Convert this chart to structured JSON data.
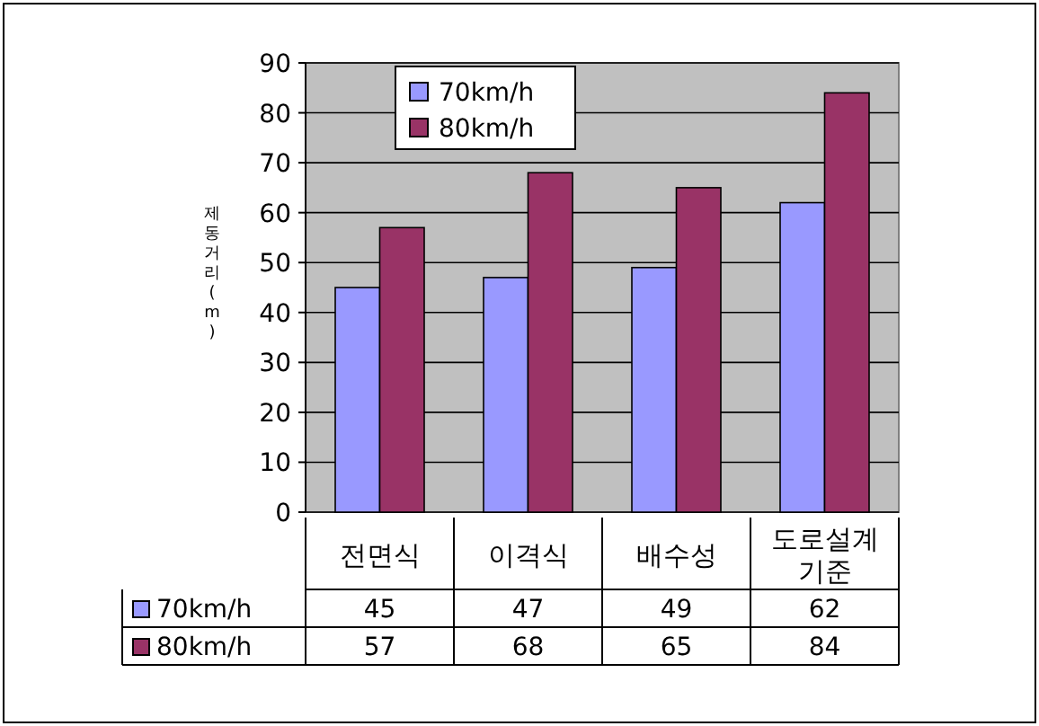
{
  "chart_data": {
    "type": "bar",
    "categories": [
      "전면식",
      "이격식",
      "배수성",
      "도로설계 기준"
    ],
    "series": [
      {
        "name": "70km/h",
        "color": "#9999ff",
        "values": [
          45,
          47,
          49,
          62
        ]
      },
      {
        "name": "80km/h",
        "color": "#993366",
        "values": [
          57,
          68,
          65,
          84
        ]
      }
    ],
    "ylabel": "제동거리(m)",
    "ylim": [
      0,
      90
    ],
    "yticks": [
      0,
      10,
      20,
      30,
      40,
      50,
      60,
      70,
      80,
      90
    ],
    "grid": "y",
    "legend": "top left",
    "data_labels": true
  }
}
